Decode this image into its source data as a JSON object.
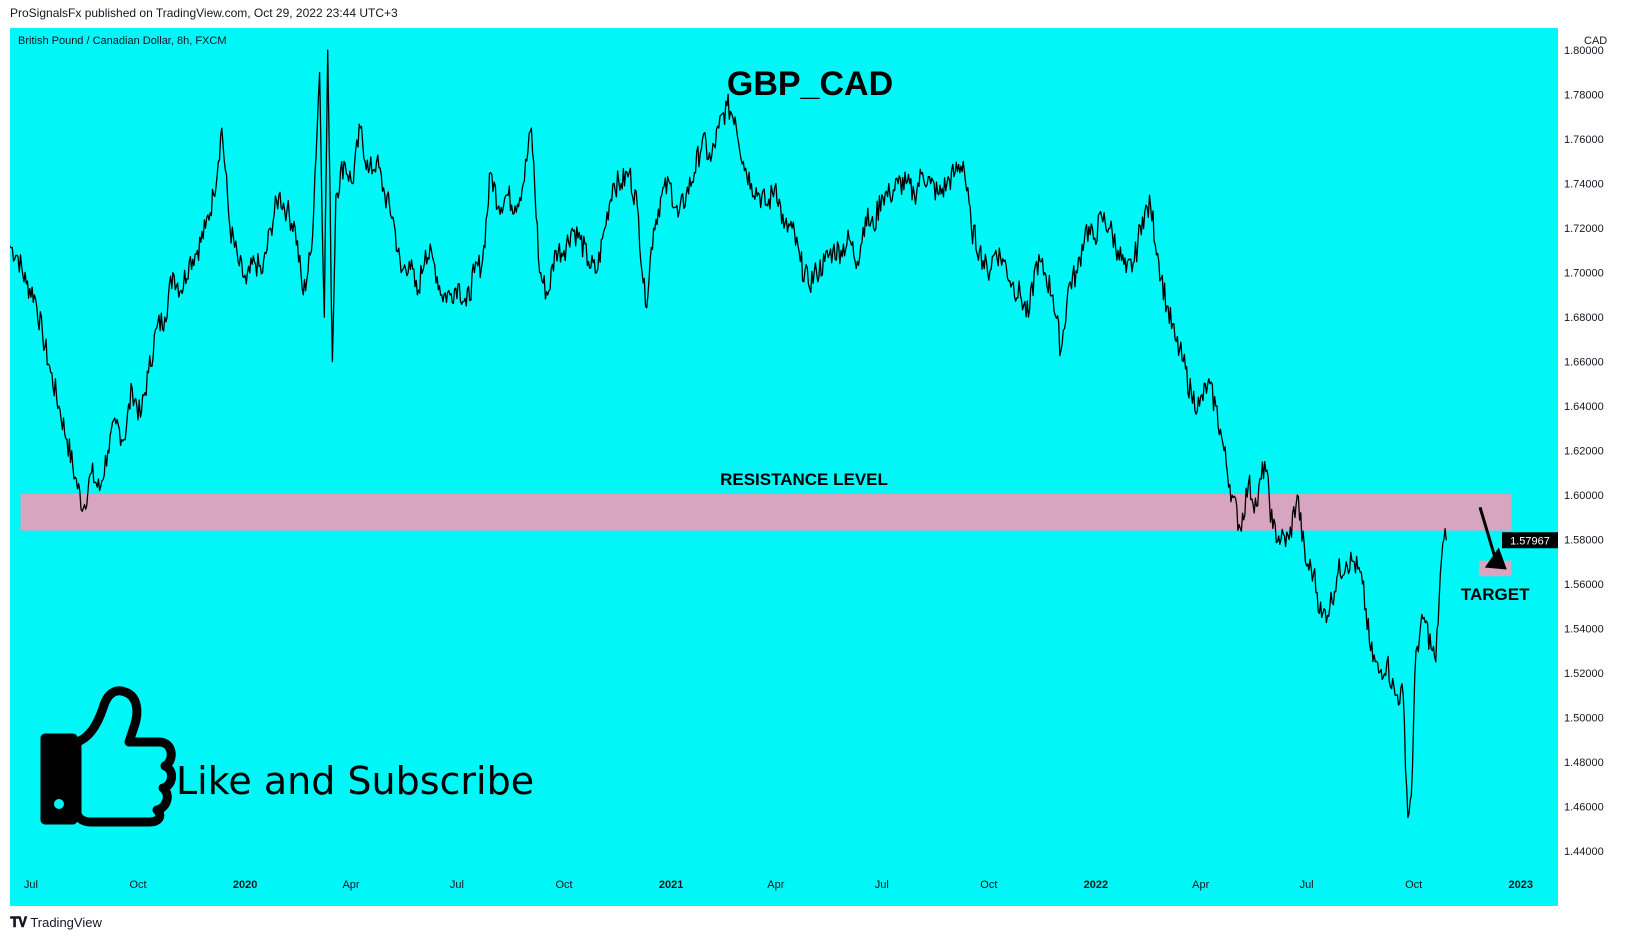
{
  "header": {
    "published_text": "ProSignalsFx published on TradingView.com, Oct 29, 2022 23:44 UTC+3"
  },
  "symbol_label": "British Pound / Canadian Dollar, 8h, FXCM",
  "currency": "CAD",
  "footer": {
    "brand": "TradingView",
    "logo_icon": "tradingview-logo-icon"
  },
  "colors": {
    "background": "#00F7F7",
    "price_line": "#000000",
    "zone": "#D8A5C0",
    "price_tag": "#000000"
  },
  "annotations": {
    "title": "GBP_CAD",
    "resistance_label": "RESISTANCE LEVEL",
    "target_label": "TARGET",
    "cta_text": "Like and Subscribe",
    "cta_icon": "thumbs-up-icon",
    "arrow_icon": "arrow-down-right-icon"
  },
  "chart_data": {
    "type": "line",
    "title": "GBP_CAD",
    "symbol": "British Pound / Canadian Dollar",
    "interval": "8h",
    "source": "FXCM",
    "ylabel": "CAD",
    "ylim": [
      1.435,
      1.81
    ],
    "y_ticks": [
      "1.80000",
      "1.78000",
      "1.76000",
      "1.74000",
      "1.72000",
      "1.70000",
      "1.68000",
      "1.66000",
      "1.64000",
      "1.62000",
      "1.60000",
      "1.58000",
      "1.56000",
      "1.54000",
      "1.52000",
      "1.50000",
      "1.48000",
      "1.46000",
      "1.44000"
    ],
    "x_ticks": [
      {
        "label": "Jul",
        "bold": false,
        "date": "2019-07-01"
      },
      {
        "label": "Oct",
        "bold": false,
        "date": "2019-10-01"
      },
      {
        "label": "2020",
        "bold": true,
        "date": "2020-01-01"
      },
      {
        "label": "Apr",
        "bold": false,
        "date": "2020-04-01"
      },
      {
        "label": "Jul",
        "bold": false,
        "date": "2020-07-01"
      },
      {
        "label": "Oct",
        "bold": false,
        "date": "2020-10-01"
      },
      {
        "label": "2021",
        "bold": true,
        "date": "2021-01-01"
      },
      {
        "label": "Apr",
        "bold": false,
        "date": "2021-04-01"
      },
      {
        "label": "Jul",
        "bold": false,
        "date": "2021-07-01"
      },
      {
        "label": "Oct",
        "bold": false,
        "date": "2021-10-01"
      },
      {
        "label": "2022",
        "bold": true,
        "date": "2022-01-01"
      },
      {
        "label": "Apr",
        "bold": false,
        "date": "2022-04-01"
      },
      {
        "label": "Jul",
        "bold": false,
        "date": "2022-07-01"
      },
      {
        "label": "Oct",
        "bold": false,
        "date": "2022-10-01"
      },
      {
        "label": "2023",
        "bold": true,
        "date": "2023-01-01"
      }
    ],
    "xlim": [
      "2019-06-13",
      "2023-02-02"
    ],
    "current_price": "1.57967",
    "resistance_zone": {
      "start": "2019-06-22",
      "end": "2022-12-24",
      "low": 1.584,
      "high": 1.6005
    },
    "target_zone": {
      "start": "2022-11-26",
      "end": "2022-12-24",
      "low": 1.5635,
      "high": 1.5705
    },
    "target_arrow": {
      "from": {
        "date": "2022-11-27",
        "value": 1.5945
      },
      "to": {
        "date": "2022-12-20",
        "value": 1.5665
      }
    },
    "series": [
      {
        "points": [
          [
            "2019-06-13",
            1.712
          ],
          [
            "2019-06-20",
            1.707
          ],
          [
            "2019-06-27",
            1.695
          ],
          [
            "2019-07-04",
            1.69
          ],
          [
            "2019-07-11",
            1.672
          ],
          [
            "2019-07-18",
            1.655
          ],
          [
            "2019-07-25",
            1.64
          ],
          [
            "2019-08-01",
            1.625
          ],
          [
            "2019-08-08",
            1.608
          ],
          [
            "2019-08-15",
            1.594
          ],
          [
            "2019-08-22",
            1.61
          ],
          [
            "2019-08-29",
            1.602
          ],
          [
            "2019-09-05",
            1.62
          ],
          [
            "2019-09-12",
            1.632
          ],
          [
            "2019-09-19",
            1.625
          ],
          [
            "2019-09-26",
            1.648
          ],
          [
            "2019-10-03",
            1.635
          ],
          [
            "2019-10-10",
            1.655
          ],
          [
            "2019-10-17",
            1.675
          ],
          [
            "2019-10-24",
            1.68
          ],
          [
            "2019-10-31",
            1.7
          ],
          [
            "2019-11-07",
            1.692
          ],
          [
            "2019-11-14",
            1.705
          ],
          [
            "2019-11-21",
            1.71
          ],
          [
            "2019-11-28",
            1.72
          ],
          [
            "2019-12-05",
            1.735
          ],
          [
            "2019-12-12",
            1.765
          ],
          [
            "2019-12-19",
            1.72
          ],
          [
            "2019-12-26",
            1.705
          ],
          [
            "2020-01-02",
            1.695
          ],
          [
            "2020-01-09",
            1.705
          ],
          [
            "2020-01-16",
            1.7
          ],
          [
            "2020-01-23",
            1.72
          ],
          [
            "2020-01-30",
            1.735
          ],
          [
            "2020-02-06",
            1.728
          ],
          [
            "2020-02-13",
            1.72
          ],
          [
            "2020-02-20",
            1.69
          ],
          [
            "2020-02-27",
            1.71
          ],
          [
            "2020-03-05",
            1.79
          ],
          [
            "2020-03-09",
            1.68
          ],
          [
            "2020-03-12",
            1.8
          ],
          [
            "2020-03-16",
            1.66
          ],
          [
            "2020-03-19",
            1.735
          ],
          [
            "2020-03-26",
            1.75
          ],
          [
            "2020-04-02",
            1.74
          ],
          [
            "2020-04-09",
            1.765
          ],
          [
            "2020-04-16",
            1.745
          ],
          [
            "2020-04-23",
            1.75
          ],
          [
            "2020-04-30",
            1.735
          ],
          [
            "2020-05-07",
            1.725
          ],
          [
            "2020-05-14",
            1.7
          ],
          [
            "2020-05-21",
            1.705
          ],
          [
            "2020-05-28",
            1.69
          ],
          [
            "2020-06-04",
            1.71
          ],
          [
            "2020-06-11",
            1.705
          ],
          [
            "2020-06-18",
            1.69
          ],
          [
            "2020-06-25",
            1.69
          ],
          [
            "2020-07-02",
            1.695
          ],
          [
            "2020-07-09",
            1.685
          ],
          [
            "2020-07-16",
            1.7
          ],
          [
            "2020-07-23",
            1.705
          ],
          [
            "2020-07-30",
            1.745
          ],
          [
            "2020-08-06",
            1.73
          ],
          [
            "2020-08-13",
            1.735
          ],
          [
            "2020-08-20",
            1.73
          ],
          [
            "2020-08-27",
            1.74
          ],
          [
            "2020-09-03",
            1.765
          ],
          [
            "2020-09-10",
            1.7
          ],
          [
            "2020-09-17",
            1.69
          ],
          [
            "2020-09-24",
            1.71
          ],
          [
            "2020-10-01",
            1.71
          ],
          [
            "2020-10-08",
            1.72
          ],
          [
            "2020-10-15",
            1.715
          ],
          [
            "2020-10-22",
            1.705
          ],
          [
            "2020-10-29",
            1.7
          ],
          [
            "2020-11-05",
            1.72
          ],
          [
            "2020-11-12",
            1.74
          ],
          [
            "2020-11-19",
            1.74
          ],
          [
            "2020-11-26",
            1.745
          ],
          [
            "2020-12-03",
            1.73
          ],
          [
            "2020-12-10",
            1.685
          ],
          [
            "2020-12-17",
            1.72
          ],
          [
            "2020-12-24",
            1.735
          ],
          [
            "2020-12-31",
            1.74
          ],
          [
            "2021-01-07",
            1.725
          ],
          [
            "2021-01-14",
            1.735
          ],
          [
            "2021-01-21",
            1.745
          ],
          [
            "2021-01-28",
            1.76
          ],
          [
            "2021-02-04",
            1.75
          ],
          [
            "2021-02-11",
            1.765
          ],
          [
            "2021-02-18",
            1.775
          ],
          [
            "2021-02-25",
            1.77
          ],
          [
            "2021-03-04",
            1.75
          ],
          [
            "2021-03-11",
            1.74
          ],
          [
            "2021-03-18",
            1.735
          ],
          [
            "2021-03-25",
            1.73
          ],
          [
            "2021-04-01",
            1.74
          ],
          [
            "2021-04-08",
            1.72
          ],
          [
            "2021-04-15",
            1.72
          ],
          [
            "2021-04-22",
            1.705
          ],
          [
            "2021-04-29",
            1.695
          ],
          [
            "2021-05-06",
            1.7
          ],
          [
            "2021-05-13",
            1.705
          ],
          [
            "2021-05-20",
            1.71
          ],
          [
            "2021-05-27",
            1.71
          ],
          [
            "2021-06-03",
            1.715
          ],
          [
            "2021-06-10",
            1.705
          ],
          [
            "2021-06-17",
            1.725
          ],
          [
            "2021-06-24",
            1.72
          ],
          [
            "2021-07-01",
            1.735
          ],
          [
            "2021-07-08",
            1.735
          ],
          [
            "2021-07-15",
            1.74
          ],
          [
            "2021-07-22",
            1.74
          ],
          [
            "2021-07-29",
            1.735
          ],
          [
            "2021-08-05",
            1.745
          ],
          [
            "2021-08-12",
            1.74
          ],
          [
            "2021-08-19",
            1.735
          ],
          [
            "2021-08-26",
            1.74
          ],
          [
            "2021-09-02",
            1.745
          ],
          [
            "2021-09-09",
            1.75
          ],
          [
            "2021-09-16",
            1.72
          ],
          [
            "2021-09-23",
            1.71
          ],
          [
            "2021-09-30",
            1.7
          ],
          [
            "2021-10-07",
            1.71
          ],
          [
            "2021-10-14",
            1.705
          ],
          [
            "2021-10-21",
            1.695
          ],
          [
            "2021-10-28",
            1.69
          ],
          [
            "2021-11-04",
            1.68
          ],
          [
            "2021-11-11",
            1.705
          ],
          [
            "2021-11-18",
            1.7
          ],
          [
            "2021-11-25",
            1.69
          ],
          [
            "2021-12-02",
            1.665
          ],
          [
            "2021-12-09",
            1.695
          ],
          [
            "2021-12-16",
            1.7
          ],
          [
            "2021-12-23",
            1.72
          ],
          [
            "2021-12-30",
            1.715
          ],
          [
            "2022-01-06",
            1.725
          ],
          [
            "2022-01-13",
            1.72
          ],
          [
            "2022-01-20",
            1.71
          ],
          [
            "2022-01-27",
            1.7
          ],
          [
            "2022-02-03",
            1.705
          ],
          [
            "2022-02-10",
            1.725
          ],
          [
            "2022-02-17",
            1.73
          ],
          [
            "2022-02-24",
            1.705
          ],
          [
            "2022-03-03",
            1.685
          ],
          [
            "2022-03-10",
            1.67
          ],
          [
            "2022-03-17",
            1.66
          ],
          [
            "2022-03-24",
            1.645
          ],
          [
            "2022-03-31",
            1.64
          ],
          [
            "2022-04-07",
            1.65
          ],
          [
            "2022-04-14",
            1.64
          ],
          [
            "2022-04-21",
            1.62
          ],
          [
            "2022-04-28",
            1.6
          ],
          [
            "2022-05-05",
            1.585
          ],
          [
            "2022-05-12",
            1.605
          ],
          [
            "2022-05-19",
            1.595
          ],
          [
            "2022-05-26",
            1.615
          ],
          [
            "2022-06-02",
            1.585
          ],
          [
            "2022-06-09",
            1.58
          ],
          [
            "2022-06-16",
            1.58
          ],
          [
            "2022-06-23",
            1.6
          ],
          [
            "2022-06-30",
            1.57
          ],
          [
            "2022-07-07",
            1.565
          ],
          [
            "2022-07-14",
            1.545
          ],
          [
            "2022-07-21",
            1.55
          ],
          [
            "2022-07-28",
            1.565
          ],
          [
            "2022-08-04",
            1.57
          ],
          [
            "2022-08-11",
            1.57
          ],
          [
            "2022-08-18",
            1.56
          ],
          [
            "2022-08-25",
            1.53
          ],
          [
            "2022-09-01",
            1.52
          ],
          [
            "2022-09-08",
            1.525
          ],
          [
            "2022-09-15",
            1.51
          ],
          [
            "2022-09-22",
            1.51
          ],
          [
            "2022-09-26",
            1.455
          ],
          [
            "2022-09-29",
            1.465
          ],
          [
            "2022-10-03",
            1.53
          ],
          [
            "2022-10-10",
            1.545
          ],
          [
            "2022-10-17",
            1.53
          ],
          [
            "2022-10-20",
            1.525
          ],
          [
            "2022-10-24",
            1.565
          ],
          [
            "2022-10-27",
            1.58
          ],
          [
            "2022-10-29",
            1.57967
          ]
        ]
      }
    ]
  }
}
